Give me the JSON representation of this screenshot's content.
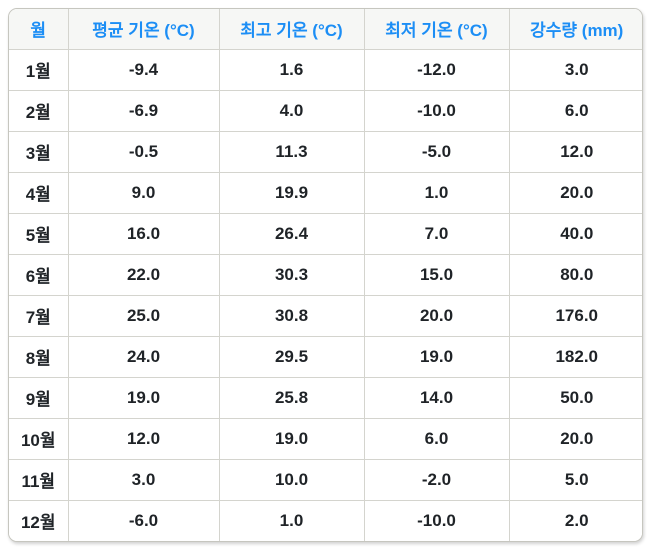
{
  "colors": {
    "header_text": "#1c8ef5",
    "header_background": "#f6f7f5",
    "body_text": "#1f2327",
    "border": "#d4d4ce",
    "outer_border": "#c6c6bf",
    "page_background": "#ffffff"
  },
  "table": {
    "headers": {
      "month": "월",
      "avg_temp": "평균 기온 (°C)",
      "max_temp": "최고 기온 (°C)",
      "min_temp": "최저 기온 (°C)",
      "precipitation": "강수량 (mm)"
    },
    "rows": [
      [
        "1월",
        "-9.4",
        "1.6",
        "-12.0",
        "3.0"
      ],
      [
        "2월",
        "-6.9",
        "4.0",
        "-10.0",
        "6.0"
      ],
      [
        "3월",
        "-0.5",
        "11.3",
        "-5.0",
        "12.0"
      ],
      [
        "4월",
        "9.0",
        "19.9",
        "1.0",
        "20.0"
      ],
      [
        "5월",
        "16.0",
        "26.4",
        "7.0",
        "40.0"
      ],
      [
        "6월",
        "22.0",
        "30.3",
        "15.0",
        "80.0"
      ],
      [
        "7월",
        "25.0",
        "30.8",
        "20.0",
        "176.0"
      ],
      [
        "8월",
        "24.0",
        "29.5",
        "19.0",
        "182.0"
      ],
      [
        "9월",
        "19.0",
        "25.8",
        "14.0",
        "50.0"
      ],
      [
        "10월",
        "12.0",
        "19.0",
        "6.0",
        "20.0"
      ],
      [
        "11월",
        "3.0",
        "10.0",
        "-2.0",
        "5.0"
      ],
      [
        "12월",
        "-6.0",
        "1.0",
        "-10.0",
        "2.0"
      ]
    ]
  },
  "chart_data": {
    "type": "table",
    "columns": [
      "월",
      "평균 기온 (°C)",
      "최고 기온 (°C)",
      "최저 기온 (°C)",
      "강수량 (mm)"
    ],
    "categories": [
      "1월",
      "2월",
      "3월",
      "4월",
      "5월",
      "6월",
      "7월",
      "8월",
      "9월",
      "10월",
      "11월",
      "12월"
    ],
    "series": [
      {
        "name": "평균 기온 (°C)",
        "values": [
          -9.4,
          -6.9,
          -0.5,
          9.0,
          16.0,
          22.0,
          25.0,
          24.0,
          19.0,
          12.0,
          3.0,
          -6.0
        ]
      },
      {
        "name": "최고 기온 (°C)",
        "values": [
          1.6,
          4.0,
          11.3,
          19.9,
          26.4,
          30.3,
          30.8,
          29.5,
          25.8,
          19.0,
          10.0,
          1.0
        ]
      },
      {
        "name": "최저 기온 (°C)",
        "values": [
          -12.0,
          -10.0,
          -5.0,
          1.0,
          7.0,
          15.0,
          20.0,
          19.0,
          14.0,
          6.0,
          -2.0,
          -10.0
        ]
      },
      {
        "name": "강수량 (mm)",
        "values": [
          3.0,
          6.0,
          12.0,
          20.0,
          40.0,
          80.0,
          176.0,
          182.0,
          50.0,
          20.0,
          5.0,
          2.0
        ]
      }
    ]
  }
}
